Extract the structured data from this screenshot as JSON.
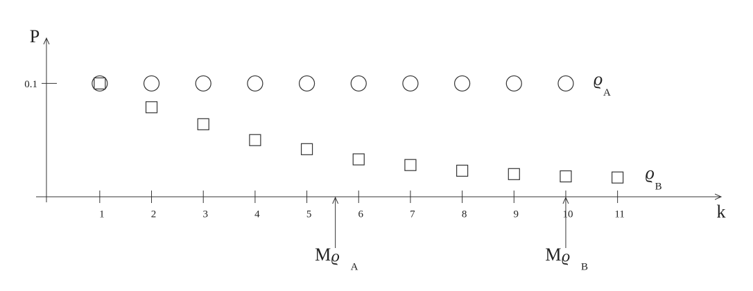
{
  "chart_data": {
    "type": "scatter",
    "x_label": "k",
    "y_label": "P",
    "xlim": [
      -0.23,
      13
    ],
    "ylim": [
      0,
      0.14
    ],
    "xticks": [
      1,
      2,
      3,
      4,
      5,
      6,
      7,
      8,
      9,
      10,
      11
    ],
    "yticks": [
      0.1
    ],
    "series": [
      {
        "name": "ϱ",
        "subscript": "A",
        "marker": "circle",
        "color": "#333",
        "x": [
          1,
          2,
          3,
          4,
          5,
          6,
          7,
          8,
          9,
          10
        ],
        "values": [
          0.1,
          0.1,
          0.1,
          0.1,
          0.1,
          0.1,
          0.1,
          0.1,
          0.1,
          0.1
        ]
      },
      {
        "name": "ϱ",
        "subscript": "B",
        "marker": "square",
        "color": "#333",
        "x": [
          1,
          2,
          3,
          4,
          5,
          6,
          7,
          8,
          9,
          10,
          11
        ],
        "values": [
          0.1,
          0.079,
          0.064,
          0.05,
          0.042,
          0.033,
          0.028,
          0.023,
          0.02,
          0.018,
          0.017
        ]
      }
    ],
    "annotations": [
      {
        "text": "M",
        "symbol": "ϱ",
        "subscript": "A",
        "x": 5.55
      },
      {
        "text": "M",
        "symbol": "ϱ",
        "subscript": "B",
        "x": 10
      }
    ]
  }
}
